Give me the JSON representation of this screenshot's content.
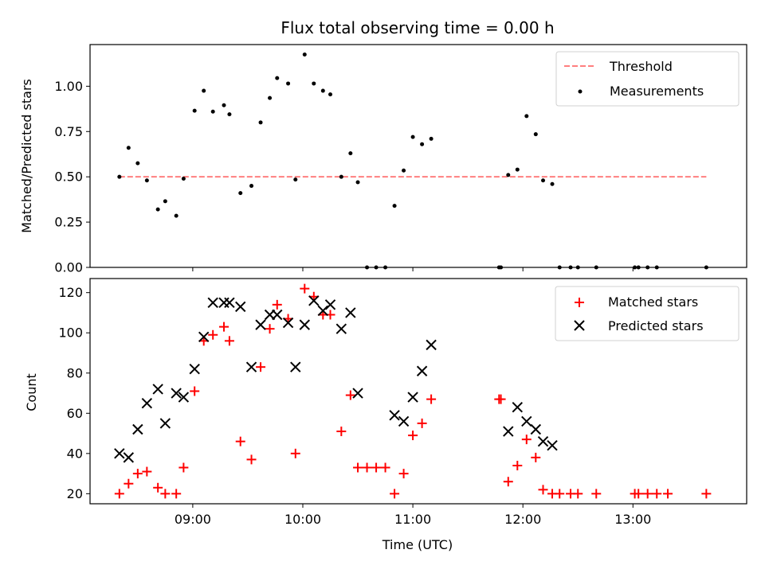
{
  "chart_data": [
    {
      "type": "scatter",
      "title": "Flux total observing time = 0.00 h",
      "xlabel": "",
      "ylabel": "Matched/Predicted stars",
      "xlim": [
        "08:04",
        "14:02"
      ],
      "ylim": [
        0,
        1.23
      ],
      "yticks": [
        "0.00",
        "0.25",
        "0.50",
        "0.75",
        "1.00"
      ],
      "xticks": [
        "09:00",
        "10:00",
        "11:00",
        "12:00",
        "13:00"
      ],
      "xtick_labels_shown": false,
      "legend_position": "top-right",
      "threshold": {
        "name": "Threshold",
        "value": 0.5,
        "x_range": [
          "08:20",
          "13:40"
        ],
        "color": "#ff7f7f",
        "style": "dashed"
      },
      "series": [
        {
          "name": "Measurements",
          "color": "#000000",
          "marker": "dot",
          "points": [
            [
              "08:20",
              0.5
            ],
            [
              "08:25",
              0.66
            ],
            [
              "08:30",
              0.575
            ],
            [
              "08:35",
              0.48
            ],
            [
              "08:41",
              0.32
            ],
            [
              "08:45",
              0.365
            ],
            [
              "08:51",
              0.285
            ],
            [
              "08:55",
              0.49
            ],
            [
              "09:01",
              0.865
            ],
            [
              "09:06",
              0.975
            ],
            [
              "09:11",
              0.86
            ],
            [
              "09:17",
              0.895
            ],
            [
              "09:20",
              0.845
            ],
            [
              "09:26",
              0.41
            ],
            [
              "09:32",
              0.45
            ],
            [
              "09:37",
              0.8
            ],
            [
              "09:42",
              0.935
            ],
            [
              "09:46",
              1.045
            ],
            [
              "09:52",
              1.015
            ],
            [
              "09:56",
              0.485
            ],
            [
              "10:01",
              1.175
            ],
            [
              "10:06",
              1.015
            ],
            [
              "10:11",
              0.975
            ],
            [
              "10:15",
              0.955
            ],
            [
              "10:21",
              0.5
            ],
            [
              "10:26",
              0.63
            ],
            [
              "10:30",
              0.47
            ],
            [
              "10:35",
              0.0
            ],
            [
              "10:40",
              0.0
            ],
            [
              "10:45",
              0.0
            ],
            [
              "10:50",
              0.34
            ],
            [
              "10:55",
              0.535
            ],
            [
              "11:00",
              0.72
            ],
            [
              "11:05",
              0.68
            ],
            [
              "11:10",
              0.71
            ],
            [
              "11:47",
              0.0
            ],
            [
              "11:48",
              0.0
            ],
            [
              "11:52",
              0.51
            ],
            [
              "11:57",
              0.54
            ],
            [
              "12:02",
              0.835
            ],
            [
              "12:07",
              0.735
            ],
            [
              "12:11",
              0.48
            ],
            [
              "12:16",
              0.46
            ],
            [
              "12:20",
              0.0
            ],
            [
              "12:26",
              0.0
            ],
            [
              "12:30",
              0.0
            ],
            [
              "12:40",
              0.0
            ],
            [
              "13:01",
              0.0
            ],
            [
              "13:03",
              0.0
            ],
            [
              "13:08",
              0.0
            ],
            [
              "13:13",
              0.0
            ],
            [
              "13:40",
              0.0
            ]
          ]
        }
      ]
    },
    {
      "type": "scatter",
      "title": "",
      "xlabel": "Time (UTC)",
      "ylabel": "Count",
      "xlim": [
        "08:04",
        "14:02"
      ],
      "ylim": [
        15,
        127
      ],
      "yticks": [
        "20",
        "40",
        "60",
        "80",
        "100",
        "120"
      ],
      "xticks": [
        "09:00",
        "10:00",
        "11:00",
        "12:00",
        "13:00"
      ],
      "legend_position": "top-right",
      "series": [
        {
          "name": "Matched stars",
          "color": "#ff0000",
          "marker": "plus",
          "points": [
            [
              "08:20",
              20
            ],
            [
              "08:25",
              25
            ],
            [
              "08:30",
              30
            ],
            [
              "08:35",
              31
            ],
            [
              "08:41",
              23
            ],
            [
              "08:45",
              20
            ],
            [
              "08:51",
              20
            ],
            [
              "08:55",
              33
            ],
            [
              "09:01",
              71
            ],
            [
              "09:06",
              96
            ],
            [
              "09:11",
              99
            ],
            [
              "09:17",
              103
            ],
            [
              "09:20",
              96
            ],
            [
              "09:26",
              46
            ],
            [
              "09:32",
              37
            ],
            [
              "09:37",
              83
            ],
            [
              "09:42",
              102
            ],
            [
              "09:46",
              114
            ],
            [
              "09:52",
              107
            ],
            [
              "09:56",
              40
            ],
            [
              "10:01",
              122
            ],
            [
              "10:06",
              118
            ],
            [
              "10:11",
              109
            ],
            [
              "10:15",
              109
            ],
            [
              "10:21",
              51
            ],
            [
              "10:26",
              69
            ],
            [
              "10:30",
              33
            ],
            [
              "10:35",
              33
            ],
            [
              "10:40",
              33
            ],
            [
              "10:45",
              33
            ],
            [
              "10:50",
              20
            ],
            [
              "10:55",
              30
            ],
            [
              "11:00",
              49
            ],
            [
              "11:05",
              55
            ],
            [
              "11:10",
              67
            ],
            [
              "11:47",
              67
            ],
            [
              "11:48",
              67
            ],
            [
              "11:52",
              26
            ],
            [
              "11:57",
              34
            ],
            [
              "12:02",
              47
            ],
            [
              "12:07",
              38
            ],
            [
              "12:11",
              22
            ],
            [
              "12:16",
              20
            ],
            [
              "12:20",
              20
            ],
            [
              "12:26",
              20
            ],
            [
              "12:30",
              20
            ],
            [
              "12:40",
              20
            ],
            [
              "13:01",
              20
            ],
            [
              "13:03",
              20
            ],
            [
              "13:08",
              20
            ],
            [
              "13:13",
              20
            ],
            [
              "13:19",
              20
            ],
            [
              "13:40",
              20
            ]
          ]
        },
        {
          "name": "Predicted stars",
          "color": "#000000",
          "marker": "x",
          "points": [
            [
              "08:20",
              40
            ],
            [
              "08:25",
              38
            ],
            [
              "08:30",
              52
            ],
            [
              "08:35",
              65
            ],
            [
              "08:41",
              72
            ],
            [
              "08:45",
              55
            ],
            [
              "08:51",
              70
            ],
            [
              "08:55",
              68
            ],
            [
              "09:01",
              82
            ],
            [
              "09:06",
              98
            ],
            [
              "09:11",
              115
            ],
            [
              "09:17",
              115
            ],
            [
              "09:20",
              115
            ],
            [
              "09:26",
              113
            ],
            [
              "09:32",
              83
            ],
            [
              "09:37",
              104
            ],
            [
              "09:42",
              109
            ],
            [
              "09:46",
              109
            ],
            [
              "09:52",
              105
            ],
            [
              "09:56",
              83
            ],
            [
              "10:01",
              104
            ],
            [
              "10:06",
              116
            ],
            [
              "10:11",
              111
            ],
            [
              "10:15",
              114
            ],
            [
              "10:21",
              102
            ],
            [
              "10:26",
              110
            ],
            [
              "10:30",
              70
            ],
            [
              "10:50",
              59
            ],
            [
              "10:55",
              56
            ],
            [
              "11:00",
              68
            ],
            [
              "11:05",
              81
            ],
            [
              "11:10",
              94
            ],
            [
              "11:52",
              51
            ],
            [
              "11:57",
              63
            ],
            [
              "12:02",
              56
            ],
            [
              "12:07",
              52
            ],
            [
              "12:11",
              46
            ],
            [
              "12:16",
              44
            ]
          ]
        }
      ]
    }
  ]
}
